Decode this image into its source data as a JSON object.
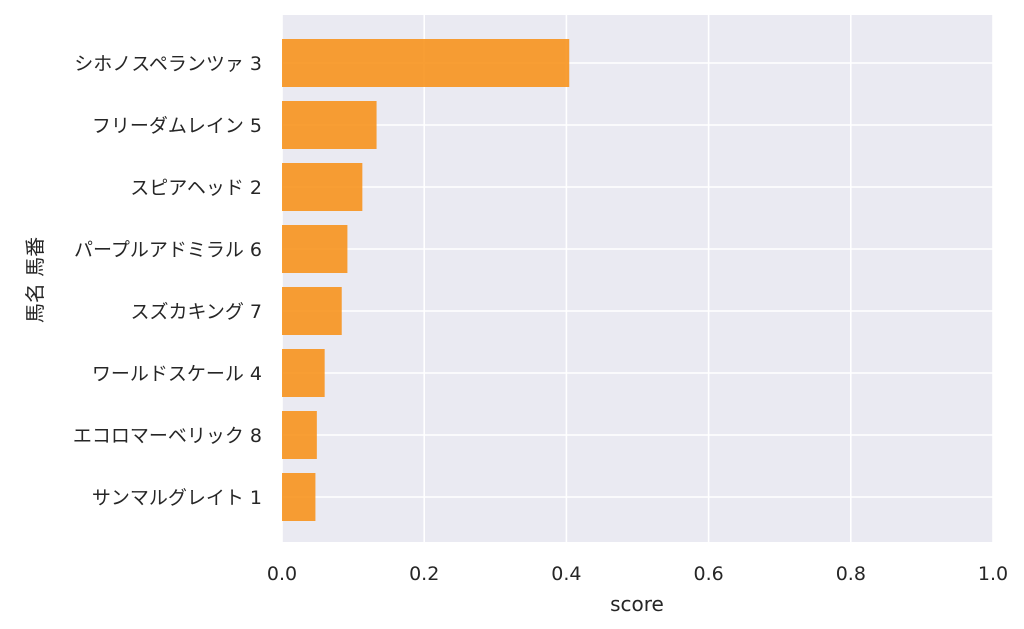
{
  "chart_data": {
    "type": "bar",
    "orientation": "horizontal",
    "categories": [
      "シホノスペランツァ 3",
      "フリーダムレイン 5",
      "スピアヘッド 2",
      "パープルアドミラル 6",
      "スズカキング 7",
      "ワールドスケール 4",
      "エコロマーベリック 8",
      "サンマルグレイト 1"
    ],
    "values": [
      0.404,
      0.133,
      0.113,
      0.092,
      0.084,
      0.06,
      0.049,
      0.047
    ],
    "xlabel": "score",
    "ylabel": "馬名 馬番",
    "xlim": [
      0.0,
      1.0
    ],
    "xticks": [
      "0.0",
      "0.2",
      "0.4",
      "0.6",
      "0.8",
      "1.0"
    ],
    "grid": true,
    "bar_color": "#f7931e",
    "background_color": "#eaeaf2"
  }
}
